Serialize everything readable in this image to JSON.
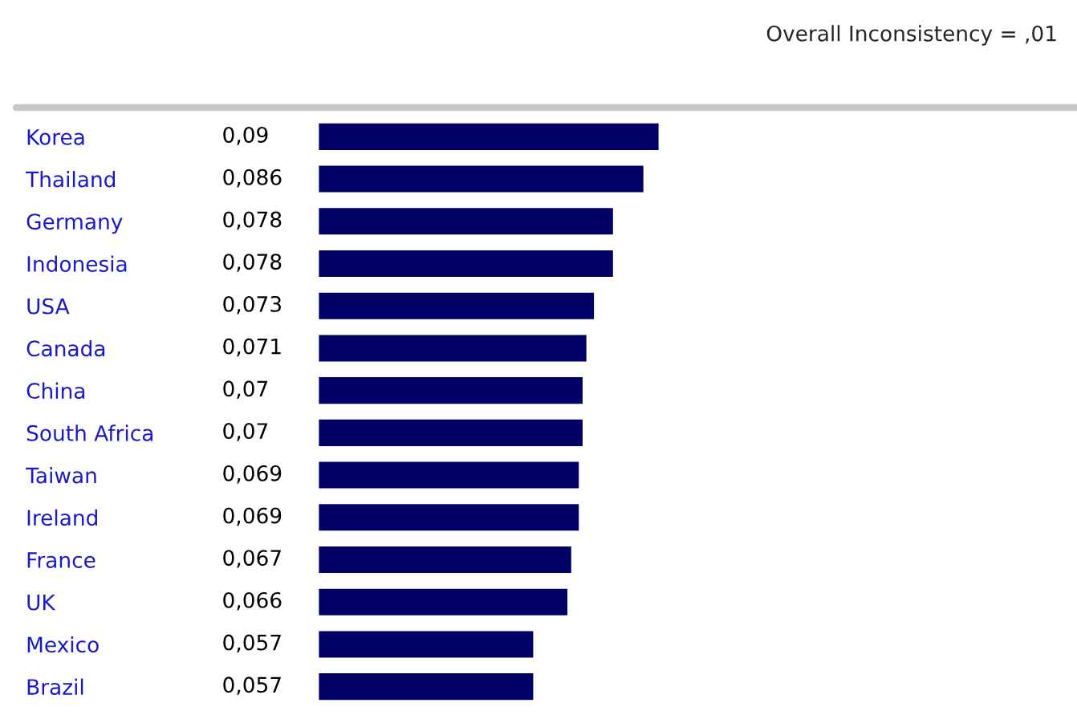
{
  "chart_data": {
    "type": "bar",
    "orientation": "horizontal",
    "annotations": [
      "Overall Inconsistency = ,01"
    ],
    "categories": [
      "Korea",
      "Thailand",
      "Germany",
      "Indonesia",
      "USA",
      "Canada",
      "China",
      "South Africa",
      "Taiwan",
      "Ireland",
      "France",
      "UK",
      "Mexico",
      "Brazil"
    ],
    "values": [
      0.09,
      0.086,
      0.078,
      0.078,
      0.073,
      0.071,
      0.07,
      0.07,
      0.069,
      0.069,
      0.067,
      0.066,
      0.057,
      0.057
    ],
    "value_labels": [
      "0,09",
      "0,086",
      "0,078",
      "0,078",
      "0,073",
      "0,071",
      "0,07",
      "0,07",
      "0,069",
      "0,069",
      "0,067",
      "0,066",
      "0,057",
      "0,057"
    ],
    "color": "#000066",
    "grid": false,
    "legend": false
  }
}
